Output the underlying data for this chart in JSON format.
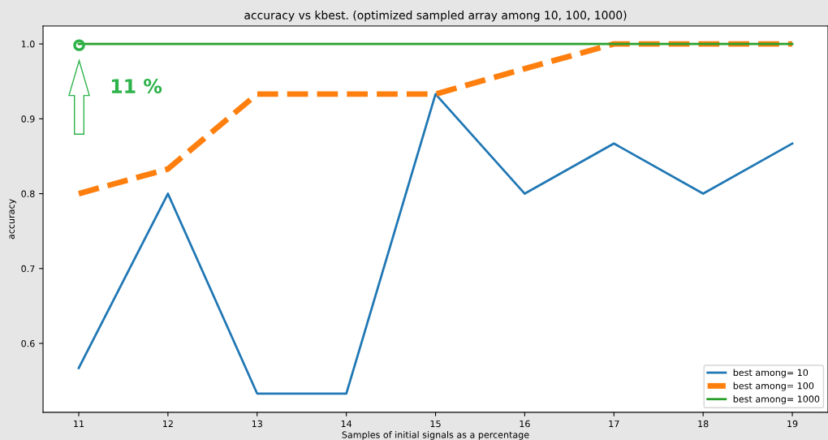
{
  "chart_data": {
    "type": "line",
    "title": "accuracy vs kbest. (optimized sampled array among 10, 100, 1000)",
    "xlabel": "Samples of initial signals as a percentage",
    "ylabel": "accuracy",
    "x": [
      11,
      12,
      13,
      14,
      15,
      16,
      17,
      18,
      19
    ],
    "series": [
      {
        "name": "best among= 10",
        "color": "#1f77b4",
        "line_style": "solid",
        "values": [
          0.567,
          0.8,
          0.533,
          0.533,
          0.933,
          0.8,
          0.867,
          0.8,
          0.867
        ]
      },
      {
        "name": "best among= 100",
        "color": "#ff7f0e",
        "line_style": "dashed",
        "values": [
          0.8,
          0.833,
          0.933,
          0.933,
          0.933,
          0.967,
          1.0,
          1.0,
          1.0
        ]
      },
      {
        "name": "best among= 1000",
        "color": "#2ca02c",
        "line_style": "solid",
        "values": [
          1.0,
          1.0,
          1.0,
          1.0,
          1.0,
          1.0,
          1.0,
          1.0,
          1.0
        ]
      }
    ],
    "xlim": [
      10.6,
      19.4
    ],
    "ylim": [
      0.508,
      1.024
    ],
    "xticks": [
      11,
      12,
      13,
      14,
      15,
      16,
      17,
      18,
      19
    ],
    "yticks": [
      0.6,
      0.7,
      0.8,
      0.9,
      {
        "value": 1.0,
        "label": "1.0"
      }
    ],
    "annotations": [
      "11 %"
    ],
    "grid": false,
    "legend": "bottom right",
    "marker": "none"
  }
}
